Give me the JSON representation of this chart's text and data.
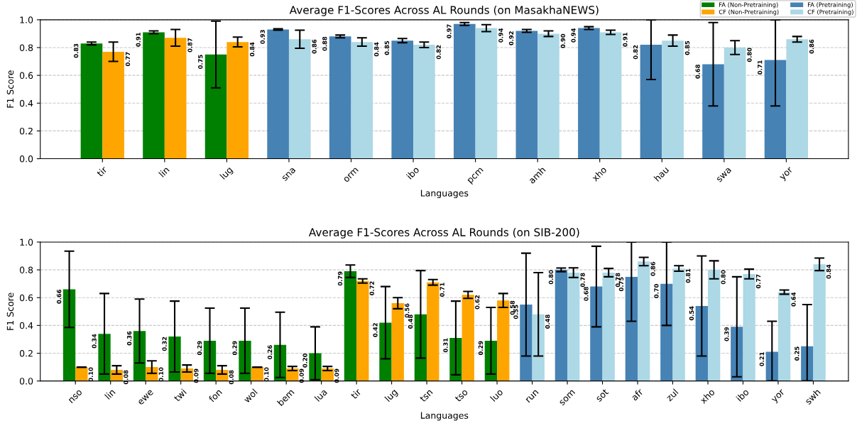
{
  "chart_data": [
    {
      "type": "bar",
      "title": "Average F1-Scores Across AL Rounds (on MasakhaNEWS)",
      "xlabel": "Languages",
      "ylabel": "F1 Score",
      "categories": [
        "tir",
        "lin",
        "lug",
        "sna",
        "orm",
        "ibo",
        "pcm",
        "amh",
        "xho",
        "hau",
        "swa",
        "yor"
      ],
      "ylim": [
        0,
        1.0
      ],
      "yticks": [
        {
          "value": 0,
          "label": "0.0"
        },
        {
          "value": 0.2,
          "label": "0.2"
        },
        {
          "value": 0.4,
          "label": "0.4"
        },
        {
          "value": 0.6,
          "label": "0.6"
        },
        {
          "value": 0.8,
          "label": "0.8"
        },
        {
          "value": 1.0,
          "label": "1.0"
        }
      ],
      "grid": "y",
      "legend": "top right",
      "series": [
        {
          "name": "FA (Non-Pretraining)",
          "color": "#008000",
          "values": [
            0.83,
            0.91,
            0.75,
            null,
            null,
            null,
            null,
            null,
            null,
            null,
            null,
            null
          ],
          "errors": [
            0.01,
            0.01,
            0.24,
            null,
            null,
            null,
            null,
            null,
            null,
            null,
            null,
            null
          ],
          "value_labels": [
            "0.83",
            "0.91",
            "0.75",
            null,
            null,
            null,
            null,
            null,
            null,
            null,
            null,
            null
          ]
        },
        {
          "name": "CF (Non-Pretraining)",
          "color": "#ffa500",
          "values": [
            0.77,
            0.87,
            0.84,
            null,
            null,
            null,
            null,
            null,
            null,
            null,
            null,
            null
          ],
          "errors": [
            0.07,
            0.06,
            0.035,
            null,
            null,
            null,
            null,
            null,
            null,
            null,
            null,
            null
          ],
          "value_labels": [
            "0.77",
            "0.87",
            "0.84",
            null,
            null,
            null,
            null,
            null,
            null,
            null,
            null,
            null
          ]
        },
        {
          "name": "FA (Pretraining)",
          "color": "#4682b4",
          "values": [
            null,
            null,
            null,
            0.93,
            0.88,
            0.85,
            0.97,
            0.92,
            0.94,
            0.82,
            0.68,
            0.71
          ],
          "errors": [
            null,
            null,
            null,
            0.005,
            0.01,
            0.015,
            0.01,
            0.01,
            0.01,
            [
              0.57,
              1.0
            ],
            0.3,
            [
              0.38,
              1.0
            ]
          ],
          "value_labels": [
            null,
            null,
            null,
            "0.93",
            "0.88",
            "0.85",
            "0.97",
            "0.92",
            "0.94",
            "0.82",
            "0.68",
            "0.71"
          ]
        },
        {
          "name": "CF (Pretraining)",
          "color": "#add8e6",
          "values": [
            null,
            null,
            null,
            0.86,
            0.84,
            0.82,
            0.94,
            0.9,
            0.91,
            0.85,
            0.8,
            0.86
          ],
          "errors": [
            null,
            null,
            null,
            0.065,
            0.03,
            0.02,
            0.025,
            0.02,
            0.015,
            0.04,
            0.05,
            0.02
          ],
          "value_labels": [
            null,
            null,
            null,
            "0.86",
            "0.84",
            "0.82",
            "0.94",
            "0.90",
            "0.91",
            "0.85",
            "0.80",
            "0.86"
          ]
        }
      ]
    },
    {
      "type": "bar",
      "title": "Average F1-Scores Across AL Rounds (on SIB-200)",
      "xlabel": "Languages",
      "ylabel": "F1 Score",
      "categories": [
        "nso",
        "lin",
        "ewe",
        "twi",
        "fon",
        "wol",
        "bem",
        "lua",
        "tir",
        "lug",
        "tsn",
        "tso",
        "luo",
        "run",
        "som",
        "sot",
        "afr",
        "zul",
        "xho",
        "ibo",
        "yor",
        "swh"
      ],
      "ylim": [
        0,
        1.0
      ],
      "yticks": [
        {
          "value": 0,
          "label": "0.0"
        },
        {
          "value": 0.2,
          "label": "0.2"
        },
        {
          "value": 0.4,
          "label": "0.4"
        },
        {
          "value": 0.6,
          "label": "0.6"
        },
        {
          "value": 0.8,
          "label": "0.8"
        },
        {
          "value": 1.0,
          "label": "1.0"
        }
      ],
      "grid": "y",
      "series": [
        {
          "color": "#008000",
          "values": [
            0.66,
            0.34,
            0.36,
            0.32,
            0.29,
            0.29,
            0.26,
            0.2,
            0.79,
            0.42,
            0.48,
            0.31,
            0.29,
            null,
            null,
            null,
            null,
            null,
            null,
            null,
            null,
            null
          ],
          "errors": [
            0.275,
            0.29,
            0.23,
            0.255,
            0.235,
            0.235,
            0.235,
            0.19,
            0.045,
            0.26,
            0.315,
            0.265,
            0.24,
            null,
            null,
            null,
            null,
            null,
            null,
            null,
            null,
            null
          ],
          "value_labels": [
            "0.66",
            "0.34",
            "0.36",
            "0.32",
            "0.29",
            "0.29",
            "0.26",
            "0.20",
            "0.79",
            "0.42",
            "0.48",
            "0.31",
            "0.29",
            null,
            null,
            null,
            null,
            null,
            null,
            null,
            null,
            null
          ]
        },
        {
          "color": "#ffa500",
          "values": [
            0.1,
            0.08,
            0.1,
            0.09,
            0.08,
            0.1,
            0.09,
            0.09,
            0.72,
            0.56,
            0.71,
            0.62,
            0.58,
            null,
            null,
            null,
            null,
            null,
            null,
            null,
            null,
            null
          ],
          "errors": [
            0,
            0.03,
            0.045,
            0.025,
            0.03,
            0,
            0.015,
            0.015,
            0.015,
            0.04,
            0.02,
            0.025,
            0.05,
            null,
            null,
            null,
            null,
            null,
            null,
            null,
            null,
            null
          ],
          "value_labels": [
            "0.10",
            "0.08",
            "0.10",
            "0.09",
            "0.08",
            "0.10",
            "0.09",
            "0.09",
            "0.72",
            "0.56",
            "0.71",
            "0.62",
            "0.58",
            null,
            null,
            null,
            null,
            null,
            null,
            null,
            null,
            null
          ]
        },
        {
          "color": "#4682b4",
          "values": [
            null,
            null,
            null,
            null,
            null,
            null,
            null,
            null,
            null,
            null,
            null,
            null,
            null,
            0.55,
            0.8,
            0.68,
            0.75,
            0.7,
            0.54,
            0.39,
            0.21,
            0.25
          ],
          "errors": [
            null,
            null,
            null,
            null,
            null,
            null,
            null,
            null,
            null,
            null,
            null,
            null,
            null,
            0.37,
            0.013,
            0.29,
            [
              0.43,
              1.0
            ],
            0.3,
            0.36,
            0.36,
            [
              0,
              0.43
            ],
            [
              0,
              0.55
            ]
          ],
          "value_labels": [
            null,
            null,
            null,
            null,
            null,
            null,
            null,
            null,
            null,
            null,
            null,
            null,
            null,
            "0.55",
            "0.80",
            "0.68",
            "0.75",
            "0.70",
            "0.54",
            "0.39",
            "0.21",
            "0.25"
          ]
        },
        {
          "color": "#add8e6",
          "values": [
            null,
            null,
            null,
            null,
            null,
            null,
            null,
            null,
            null,
            null,
            null,
            null,
            null,
            0.48,
            0.78,
            0.78,
            0.86,
            0.81,
            0.8,
            0.77,
            0.64,
            0.84
          ],
          "errors": [
            null,
            null,
            null,
            null,
            null,
            null,
            null,
            null,
            null,
            null,
            null,
            null,
            null,
            0.3,
            0.035,
            0.03,
            0.03,
            0.02,
            0.065,
            0.035,
            0.015,
            0.045
          ],
          "value_labels": [
            null,
            null,
            null,
            null,
            null,
            null,
            null,
            null,
            null,
            null,
            null,
            null,
            null,
            "0.48",
            "0.78",
            "0.78",
            "0.86",
            "0.81",
            "0.80",
            "0.77",
            "0.64",
            "0.84"
          ]
        }
      ]
    }
  ]
}
